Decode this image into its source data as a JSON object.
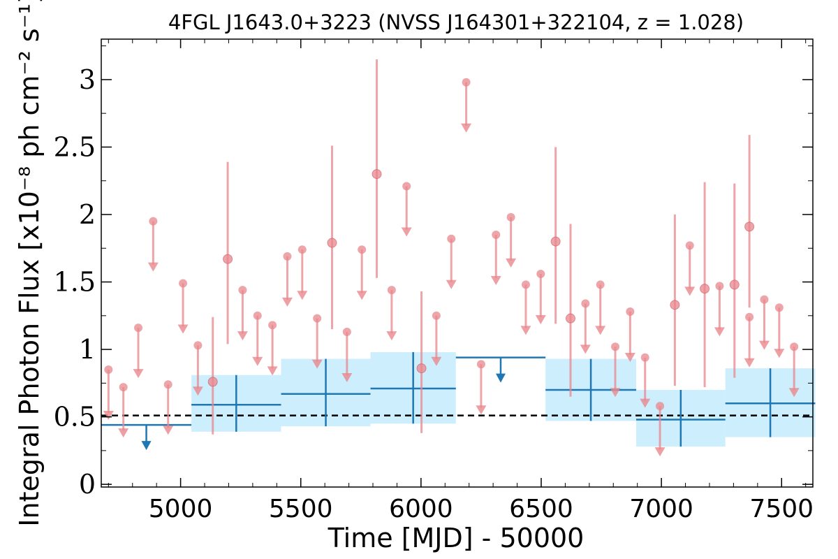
{
  "chart_data": {
    "type": "scatter",
    "title": "4FGL J1643.0+3223 (NVSS J164301+322104, z = 1.028)",
    "xlabel": "Time [MJD] - 50000",
    "ylabel": "Integral Photon Flux [x10⁻⁸ ph cm⁻² s⁻¹]",
    "xlim": [
      4670,
      7630
    ],
    "ylim": [
      -0.02,
      3.3
    ],
    "x_ticks": [
      "5000",
      "5500",
      "6000",
      "6500",
      "7000",
      "7500"
    ],
    "y_ticks": [
      "0",
      "0.5",
      "1",
      "1.5",
      "2",
      "2.5",
      "3"
    ],
    "reference_line": {
      "y": 0.51,
      "style": "dashed",
      "color": "#000000"
    },
    "colors": {
      "short_bins": "#e8878c",
      "long_bins": "#1f77b4",
      "long_bins_band": "#cdeefd"
    },
    "series": [
      {
        "kind": "short-bin upper limits",
        "points": [
          {
            "x": 4700,
            "y": 0.85
          },
          {
            "x": 4762,
            "y": 0.72
          },
          {
            "x": 4824,
            "y": 1.16
          },
          {
            "x": 4886,
            "y": 1.95
          },
          {
            "x": 4948,
            "y": 0.74
          },
          {
            "x": 5010,
            "y": 1.49
          },
          {
            "x": 5072,
            "y": 1.03
          },
          {
            "x": 5258,
            "y": 1.44
          },
          {
            "x": 5320,
            "y": 1.25
          },
          {
            "x": 5382,
            "y": 1.18
          },
          {
            "x": 5444,
            "y": 1.69
          },
          {
            "x": 5506,
            "y": 1.74
          },
          {
            "x": 5568,
            "y": 1.23
          },
          {
            "x": 5692,
            "y": 1.13
          },
          {
            "x": 5754,
            "y": 1.74
          },
          {
            "x": 5878,
            "y": 1.44
          },
          {
            "x": 5940,
            "y": 2.21
          },
          {
            "x": 6064,
            "y": 1.25
          },
          {
            "x": 6126,
            "y": 1.82
          },
          {
            "x": 6188,
            "y": 2.98
          },
          {
            "x": 6250,
            "y": 0.89
          },
          {
            "x": 6312,
            "y": 1.85
          },
          {
            "x": 6374,
            "y": 1.98
          },
          {
            "x": 6436,
            "y": 1.48
          },
          {
            "x": 6498,
            "y": 1.56
          },
          {
            "x": 6684,
            "y": 1.34
          },
          {
            "x": 6746,
            "y": 1.48
          },
          {
            "x": 6808,
            "y": 1.02
          },
          {
            "x": 6870,
            "y": 1.28
          },
          {
            "x": 6932,
            "y": 0.94
          },
          {
            "x": 6994,
            "y": 0.58
          },
          {
            "x": 7118,
            "y": 1.77
          },
          {
            "x": 7242,
            "y": 1.47
          },
          {
            "x": 7366,
            "y": 1.24
          },
          {
            "x": 7428,
            "y": 1.37
          },
          {
            "x": 7490,
            "y": 1.31
          },
          {
            "x": 7552,
            "y": 1.02
          }
        ]
      },
      {
        "kind": "short-bin detections",
        "points": [
          {
            "x": 5134,
            "y": 0.76,
            "ylo": 0.37,
            "yhi": 1.24
          },
          {
            "x": 5196,
            "y": 1.67,
            "ylo": 1.04,
            "yhi": 2.39
          },
          {
            "x": 5630,
            "y": 1.79,
            "ylo": 1.15,
            "yhi": 2.51
          },
          {
            "x": 5816,
            "y": 2.3,
            "ylo": 1.53,
            "yhi": 3.15
          },
          {
            "x": 6002,
            "y": 0.86,
            "ylo": 0.38,
            "yhi": 1.43
          },
          {
            "x": 6560,
            "y": 1.8,
            "ylo": 1.19,
            "yhi": 2.5
          },
          {
            "x": 6622,
            "y": 1.23,
            "ylo": 0.65,
            "yhi": 1.93
          },
          {
            "x": 7056,
            "y": 1.33,
            "ylo": 0.73,
            "yhi": 2.0
          },
          {
            "x": 7180,
            "y": 1.45,
            "ylo": 0.72,
            "yhi": 2.24
          },
          {
            "x": 7304,
            "y": 1.48,
            "ylo": 0.79,
            "yhi": 2.23
          },
          {
            "x": 7366,
            "y": 1.91,
            "ylo": 1.31,
            "yhi": 2.59
          }
        ]
      },
      {
        "kind": "long-bin upper limits",
        "bins": [
          {
            "x0": 4670,
            "x1": 5045,
            "y": 0.44
          },
          {
            "x0": 6145,
            "x1": 6518,
            "y": 0.94
          }
        ]
      },
      {
        "kind": "long-bin detections",
        "bins": [
          {
            "x0": 5045,
            "x1": 5418,
            "y": 0.59,
            "ylo": 0.39,
            "yhi": 0.81
          },
          {
            "x0": 5418,
            "x1": 5790,
            "y": 0.67,
            "ylo": 0.43,
            "yhi": 0.93
          },
          {
            "x0": 5790,
            "x1": 6145,
            "y": 0.71,
            "ylo": 0.45,
            "yhi": 0.98
          },
          {
            "x0": 6518,
            "x1": 6895,
            "y": 0.7,
            "ylo": 0.47,
            "yhi": 0.93
          },
          {
            "x0": 6895,
            "x1": 7266,
            "y": 0.48,
            "ylo": 0.28,
            "yhi": 0.7
          },
          {
            "x0": 7266,
            "x1": 7640,
            "y": 0.6,
            "ylo": 0.35,
            "yhi": 0.86
          }
        ]
      }
    ]
  }
}
